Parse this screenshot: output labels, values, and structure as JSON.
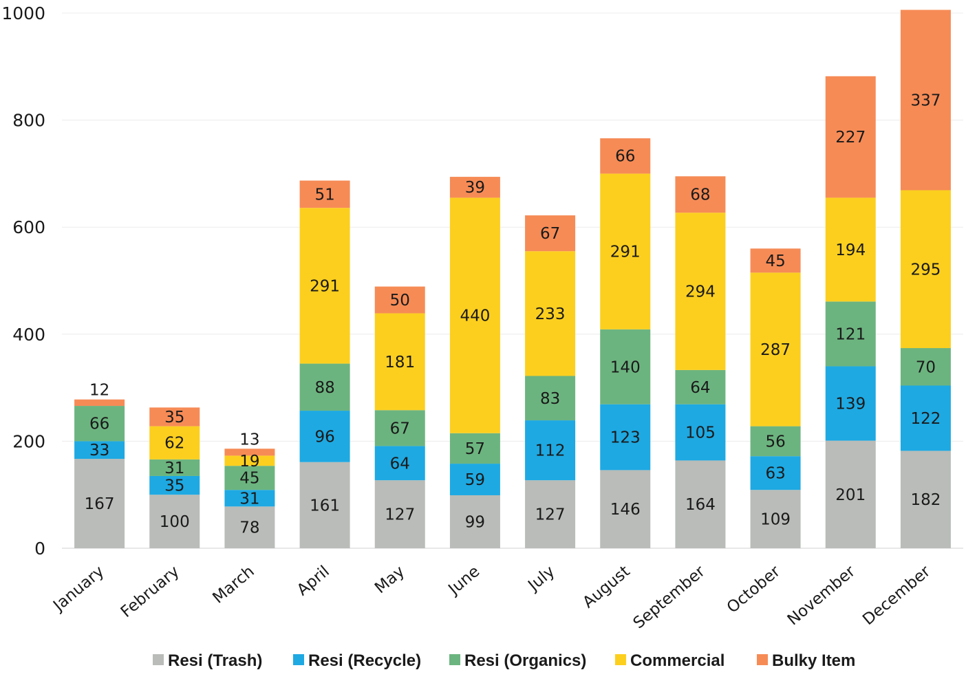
{
  "chart_data": {
    "type": "bar",
    "stacked": true,
    "categories": [
      "January",
      "February",
      "March",
      "April",
      "May",
      "June",
      "July",
      "August",
      "September",
      "October",
      "November",
      "December"
    ],
    "series": [
      {
        "name": "Resi (Trash)",
        "color": "#b9bcb8",
        "values": [
          167,
          100,
          78,
          161,
          127,
          99,
          127,
          146,
          164,
          109,
          201,
          182
        ]
      },
      {
        "name": "Resi (Recycle)",
        "color": "#1ea9e2",
        "values": [
          33,
          35,
          31,
          96,
          64,
          59,
          112,
          123,
          105,
          63,
          139,
          122
        ]
      },
      {
        "name": "Resi (Organics)",
        "color": "#6cb47f",
        "values": [
          66,
          31,
          45,
          88,
          67,
          57,
          83,
          140,
          64,
          56,
          121,
          70
        ]
      },
      {
        "name": "Commercial",
        "color": "#fccf1f",
        "values": [
          0,
          62,
          19,
          291,
          181,
          440,
          233,
          291,
          294,
          287,
          194,
          295
        ]
      },
      {
        "name": "Bulky Item",
        "color": "#f68b56",
        "values": [
          12,
          35,
          13,
          51,
          50,
          39,
          67,
          66,
          68,
          45,
          227,
          337
        ]
      }
    ],
    "ylim": [
      0,
      1000
    ],
    "yticks": [
      0,
      200,
      400,
      600,
      800,
      1000
    ],
    "grid": true,
    "legend": "bottom",
    "title": "",
    "xlabel": "",
    "ylabel": ""
  }
}
